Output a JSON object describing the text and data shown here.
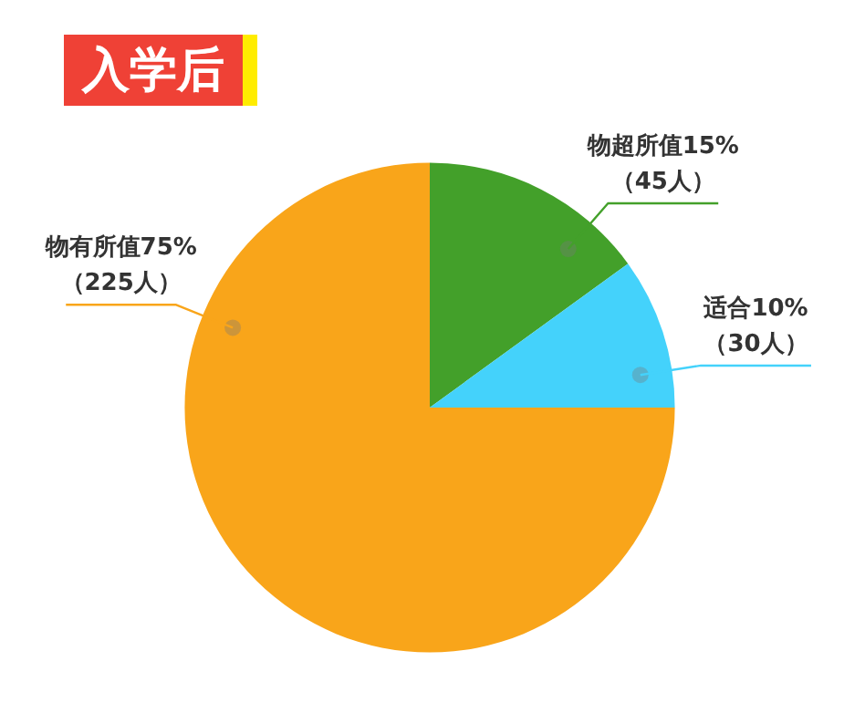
{
  "chart_data": {
    "type": "pie",
    "title": "入学后",
    "categories": [
      "物超所值",
      "适合",
      "物有所值"
    ],
    "values": [
      15,
      10,
      75
    ],
    "colors": [
      "#43a02a",
      "#44d2fb",
      "#f9a51a"
    ],
    "value_labels": [
      "15%\n（45人）",
      "10%\n（30人）",
      "75%\n（225人）"
    ]
  }
}
